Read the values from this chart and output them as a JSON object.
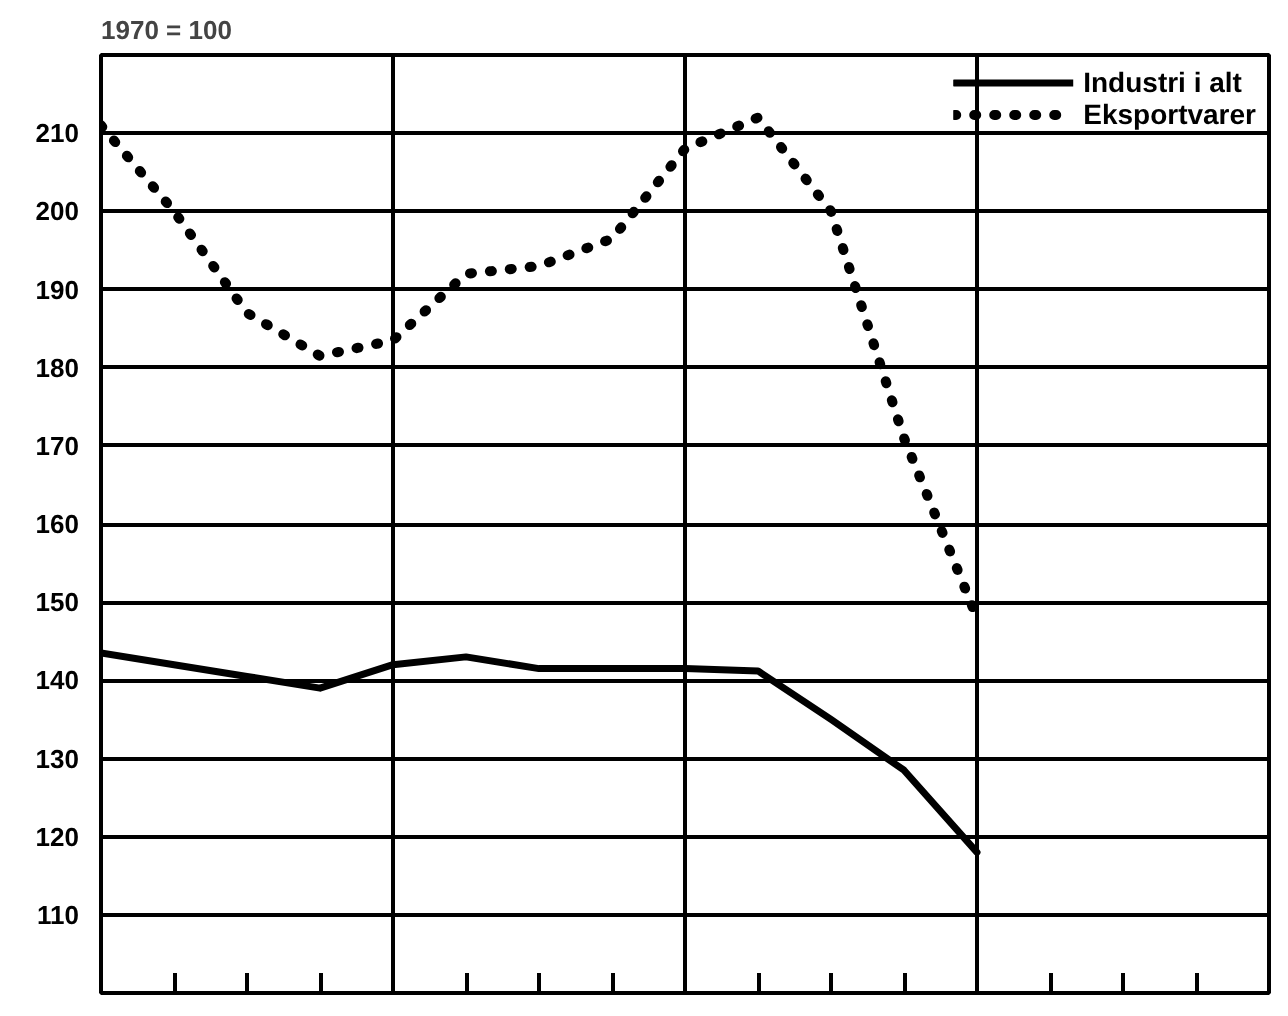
{
  "chart_data": {
    "type": "line",
    "ylabel": "1970 = 100",
    "categories": [
      null,
      null,
      null,
      null,
      null,
      null,
      null,
      null,
      null,
      null,
      null,
      null,
      null,
      null,
      null,
      null,
      null
    ],
    "series": [
      {
        "name": "Industri i alt",
        "color": "#000000",
        "line_style": "solid",
        "values": [
          143.5,
          142,
          140.5,
          139,
          142,
          143,
          141.5,
          141.5,
          141.5,
          141.2,
          135,
          128.5,
          118,
          null,
          null,
          null,
          null
        ]
      },
      {
        "name": "Eksportvarer",
        "color": "#000000",
        "line_style": "dotted",
        "values": [
          211,
          200,
          187,
          181.5,
          183.5,
          192,
          193,
          196.5,
          208,
          212,
          200,
          171,
          148,
          null,
          null,
          null,
          null
        ]
      }
    ],
    "ylim": [
      100,
      220
    ],
    "yticks": [
      110,
      120,
      130,
      140,
      150,
      160,
      170,
      180,
      190,
      200,
      210
    ],
    "tick_labels": "y",
    "grid": true,
    "legend": "top right"
  }
}
